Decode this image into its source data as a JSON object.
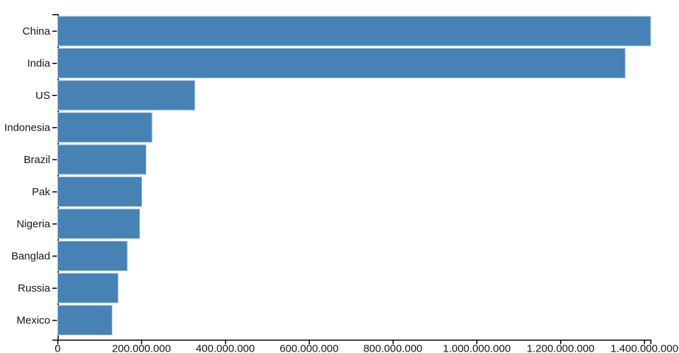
{
  "chart_data": {
    "type": "bar",
    "orientation": "horizontal",
    "title": "",
    "xlabel": "",
    "ylabel": "",
    "categories": [
      "China",
      "India",
      "US",
      "Indonesia",
      "Brazil",
      "Pak",
      "Nigeria",
      "Banglad",
      "Russia",
      "Mexico"
    ],
    "values": [
      1415000000,
      1354000000,
      327000000,
      225000000,
      211000000,
      201000000,
      196000000,
      166000000,
      144000000,
      130000000
    ],
    "xlim": [
      0,
      1415000000
    ],
    "x_ticks": [
      0,
      200000000,
      400000000,
      600000000,
      800000000,
      1000000000,
      1200000000,
      1400000000
    ],
    "x_tick_labels": [
      "0",
      "200.000.000",
      "400.000.000",
      "600.000.000",
      "800.000.000",
      "1.000.000.000",
      "1.200.000.000",
      "1.400.000.000"
    ],
    "grid": false,
    "legend": "none",
    "bar_color": "#4682b4",
    "bar_stroke_color": "#aecade",
    "axis_color": "#000000",
    "label_color": "#161616"
  }
}
